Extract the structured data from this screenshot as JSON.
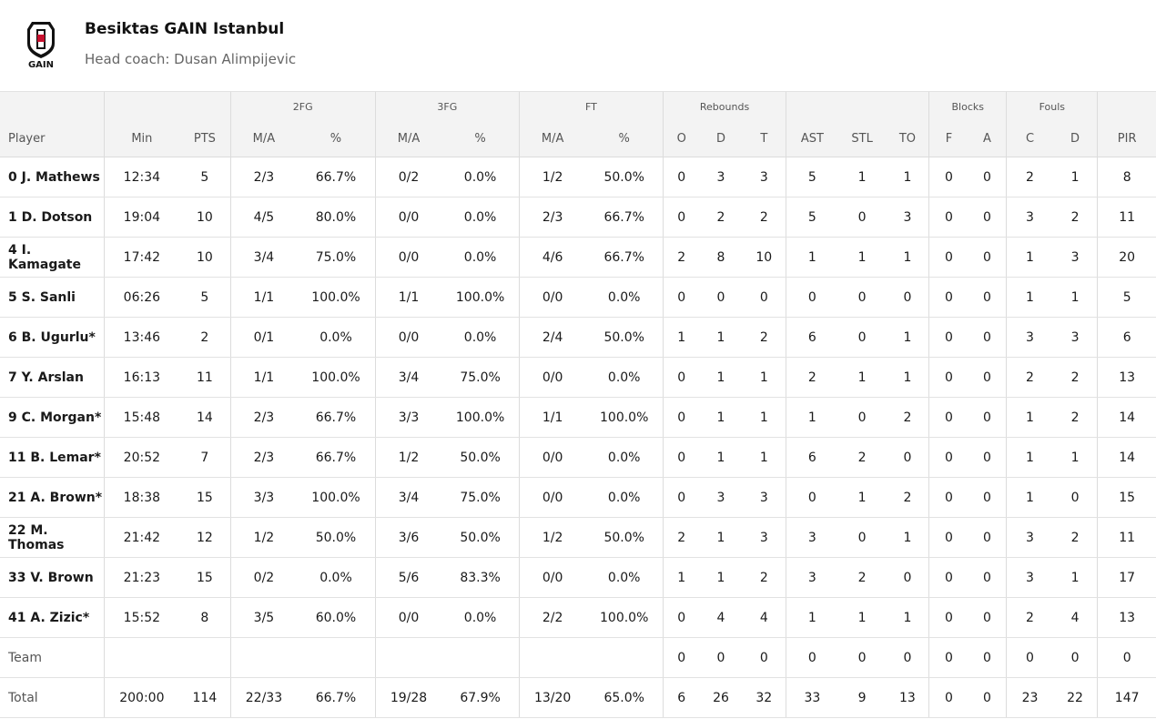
{
  "team": {
    "name": "Besiktas GAIN Istanbul",
    "coach": "Head coach: Dusan Alimpijevic",
    "logo_text": "GAIN"
  },
  "headers": {
    "groups": {
      "fg2": "2FG",
      "fg3": "3FG",
      "ft": "FT",
      "rebounds": "Rebounds",
      "blocks": "Blocks",
      "fouls": "Fouls"
    },
    "columns": [
      "Player",
      "Min",
      "PTS",
      "M/A",
      "%",
      "M/A",
      "%",
      "M/A",
      "%",
      "O",
      "D",
      "T",
      "AST",
      "STL",
      "TO",
      "F",
      "A",
      "C",
      "D",
      "PIR"
    ]
  },
  "rows": [
    [
      "0 J. Mathews",
      "12:34",
      "5",
      "2/3",
      "66.7%",
      "0/2",
      "0.0%",
      "1/2",
      "50.0%",
      "0",
      "3",
      "3",
      "5",
      "1",
      "1",
      "0",
      "0",
      "2",
      "1",
      "8"
    ],
    [
      "1 D. Dotson",
      "19:04",
      "10",
      "4/5",
      "80.0%",
      "0/0",
      "0.0%",
      "2/3",
      "66.7%",
      "0",
      "2",
      "2",
      "5",
      "0",
      "3",
      "0",
      "0",
      "3",
      "2",
      "11"
    ],
    [
      "4 I. Kamagate",
      "17:42",
      "10",
      "3/4",
      "75.0%",
      "0/0",
      "0.0%",
      "4/6",
      "66.7%",
      "2",
      "8",
      "10",
      "1",
      "1",
      "1",
      "0",
      "0",
      "1",
      "3",
      "20"
    ],
    [
      "5 S. Sanli",
      "06:26",
      "5",
      "1/1",
      "100.0%",
      "1/1",
      "100.0%",
      "0/0",
      "0.0%",
      "0",
      "0",
      "0",
      "0",
      "0",
      "0",
      "0",
      "0",
      "1",
      "1",
      "5"
    ],
    [
      "6 B. Ugurlu*",
      "13:46",
      "2",
      "0/1",
      "0.0%",
      "0/0",
      "0.0%",
      "2/4",
      "50.0%",
      "1",
      "1",
      "2",
      "6",
      "0",
      "1",
      "0",
      "0",
      "3",
      "3",
      "6"
    ],
    [
      "7 Y. Arslan",
      "16:13",
      "11",
      "1/1",
      "100.0%",
      "3/4",
      "75.0%",
      "0/0",
      "0.0%",
      "0",
      "1",
      "1",
      "2",
      "1",
      "1",
      "0",
      "0",
      "2",
      "2",
      "13"
    ],
    [
      "9 C. Morgan*",
      "15:48",
      "14",
      "2/3",
      "66.7%",
      "3/3",
      "100.0%",
      "1/1",
      "100.0%",
      "0",
      "1",
      "1",
      "1",
      "0",
      "2",
      "0",
      "0",
      "1",
      "2",
      "14"
    ],
    [
      "11 B. Lemar*",
      "20:52",
      "7",
      "2/3",
      "66.7%",
      "1/2",
      "50.0%",
      "0/0",
      "0.0%",
      "0",
      "1",
      "1",
      "6",
      "2",
      "0",
      "0",
      "0",
      "1",
      "1",
      "14"
    ],
    [
      "21 A. Brown*",
      "18:38",
      "15",
      "3/3",
      "100.0%",
      "3/4",
      "75.0%",
      "0/0",
      "0.0%",
      "0",
      "3",
      "3",
      "0",
      "1",
      "2",
      "0",
      "0",
      "1",
      "0",
      "15"
    ],
    [
      "22 M. Thomas",
      "21:42",
      "12",
      "1/2",
      "50.0%",
      "3/6",
      "50.0%",
      "1/2",
      "50.0%",
      "2",
      "1",
      "3",
      "3",
      "0",
      "1",
      "0",
      "0",
      "3",
      "2",
      "11"
    ],
    [
      "33 V. Brown",
      "21:23",
      "15",
      "0/2",
      "0.0%",
      "5/6",
      "83.3%",
      "0/0",
      "0.0%",
      "1",
      "1",
      "2",
      "3",
      "2",
      "0",
      "0",
      "0",
      "3",
      "1",
      "17"
    ],
    [
      "41 A. Zizic*",
      "15:52",
      "8",
      "3/5",
      "60.0%",
      "0/0",
      "0.0%",
      "2/2",
      "100.0%",
      "0",
      "4",
      "4",
      "1",
      "1",
      "1",
      "0",
      "0",
      "2",
      "4",
      "13"
    ]
  ],
  "team_row": [
    "Team",
    "",
    "",
    "",
    "",
    "",
    "",
    "",
    "",
    "0",
    "0",
    "0",
    "0",
    "0",
    "0",
    "0",
    "0",
    "0",
    "0",
    "0"
  ],
  "total_row": [
    "Total",
    "200:00",
    "114",
    "22/33",
    "66.7%",
    "19/28",
    "67.9%",
    "13/20",
    "65.0%",
    "6",
    "26",
    "32",
    "33",
    "9",
    "13",
    "0",
    "0",
    "23",
    "22",
    "147"
  ],
  "colors": {
    "header_bg": "#f3f3f3",
    "border": "#e2e2e2",
    "logo_red": "#c8102e"
  }
}
